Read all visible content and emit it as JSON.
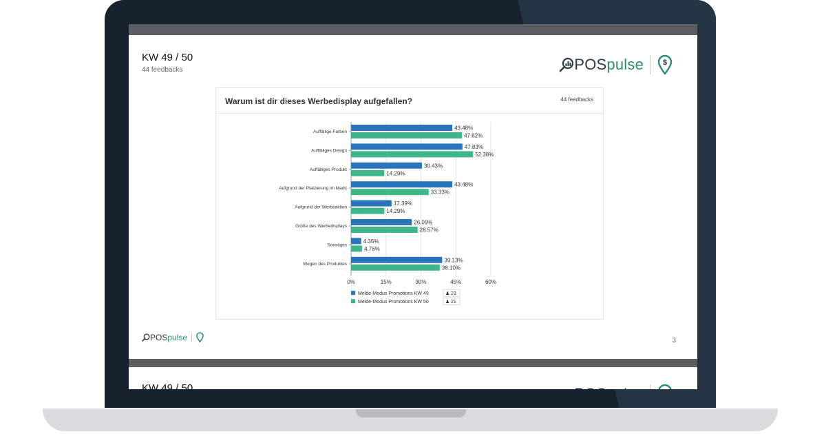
{
  "slide": {
    "title": "KW 49 / 50",
    "subtitle": "44 feedbacks",
    "page_number": "3",
    "brand_pos": "POS",
    "brand_pulse": "pulse"
  },
  "next_slide": {
    "title": "KW 49 / 50"
  },
  "colors": {
    "series_1": "#2a74b9",
    "series_2": "#3fb58a",
    "brand_dark": "#2e3a44",
    "brand_teal": "#2f8a78"
  },
  "icons": [
    "magnifier-chart-icon",
    "location-pin-dollar-icon",
    "person-icon"
  ],
  "chart_data": {
    "type": "bar",
    "orientation": "horizontal",
    "title": "Warum ist dir dieses Werbedisplay aufgefallen?",
    "feedback_count": "44 feedbacks",
    "categories": [
      "Auffällige Farben",
      "Auffälliges Design",
      "Auffälliges Produkt",
      "Aufgrund der Platzierung im Markt",
      "Aufgrund der Werbeaktion",
      "Größe des Werbedisplays",
      "Sonstiges",
      "Wegen des Produktes"
    ],
    "series": [
      {
        "name": "Melde-Modus Promotions KW 49",
        "count": "23",
        "values": [
          43.48,
          47.83,
          30.43,
          43.48,
          17.39,
          26.09,
          4.35,
          39.13
        ],
        "labels": [
          "43.48%",
          "47.83%",
          "30.43%",
          "43.48%",
          "17.39%",
          "26.09%",
          "4.35%",
          "39.13%"
        ]
      },
      {
        "name": "Melde-Modus Promotions KW 50",
        "count": "21",
        "values": [
          47.62,
          52.38,
          14.29,
          33.33,
          14.29,
          28.57,
          4.76,
          38.1
        ],
        "labels": [
          "47.62%",
          "52.38%",
          "14.29%",
          "33.33%",
          "14.29%",
          "28.57%",
          "4.76%",
          "38.10%"
        ]
      }
    ],
    "xlim": [
      0,
      60
    ],
    "xticks": [
      "0%",
      "15%",
      "30%",
      "45%",
      "60%"
    ],
    "grid": true,
    "legend_position": "bottom"
  }
}
